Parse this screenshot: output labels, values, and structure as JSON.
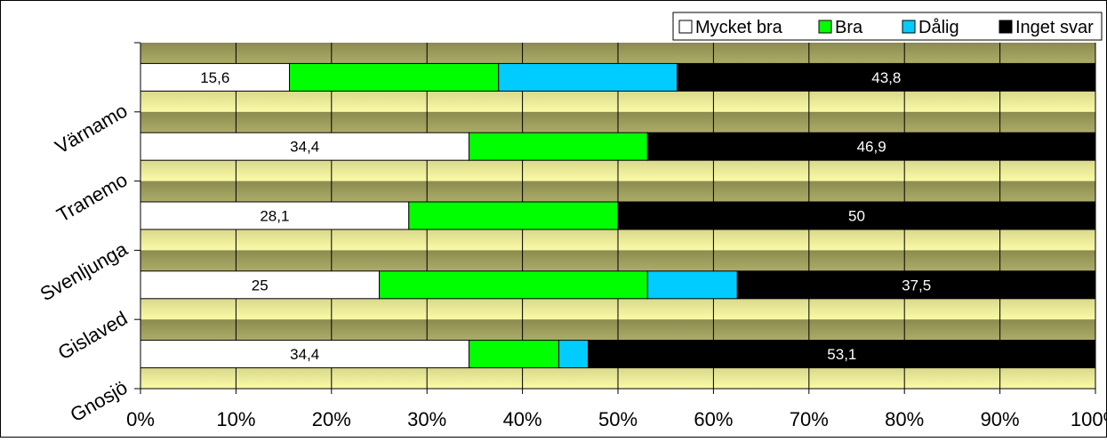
{
  "chart_data": {
    "type": "bar",
    "orientation": "horizontal",
    "stacked": "percent",
    "categories": [
      "Värnamo",
      "Tranemo",
      "Svenljunga",
      "Gislaved",
      "Gnosjö"
    ],
    "series": [
      {
        "name": "Mycket bra",
        "color": "#ffffff",
        "values": [
          15.6,
          34.4,
          28.1,
          25.0,
          34.4
        ],
        "labels": [
          "15,6",
          "34,4",
          "28,1",
          "25",
          "34,4"
        ]
      },
      {
        "name": "Bra",
        "color": "#00ff00",
        "values": [
          21.9,
          18.7,
          21.9,
          28.1,
          9.4
        ],
        "labels": [
          "",
          "",
          "",
          "",
          ""
        ]
      },
      {
        "name": "Dålig",
        "color": "#00ccff",
        "values": [
          18.7,
          0,
          0,
          9.4,
          3.1
        ],
        "labels": [
          "",
          "",
          "",
          "",
          ""
        ]
      },
      {
        "name": "Inget svar",
        "color": "#000000",
        "values": [
          43.8,
          46.9,
          50.0,
          37.5,
          53.1
        ],
        "labels": [
          "43,8",
          "46,9",
          "50",
          "37,5",
          "53,1"
        ]
      }
    ],
    "x_ticks": [
      "0%",
      "10%",
      "20%",
      "30%",
      "40%",
      "50%",
      "60%",
      "70%",
      "80%",
      "90%",
      "100%"
    ],
    "xlim": [
      0,
      100
    ],
    "grid": true,
    "legend_position": "top-right",
    "background_gradient": [
      "#8b8b4f",
      "#fafaa6"
    ]
  }
}
